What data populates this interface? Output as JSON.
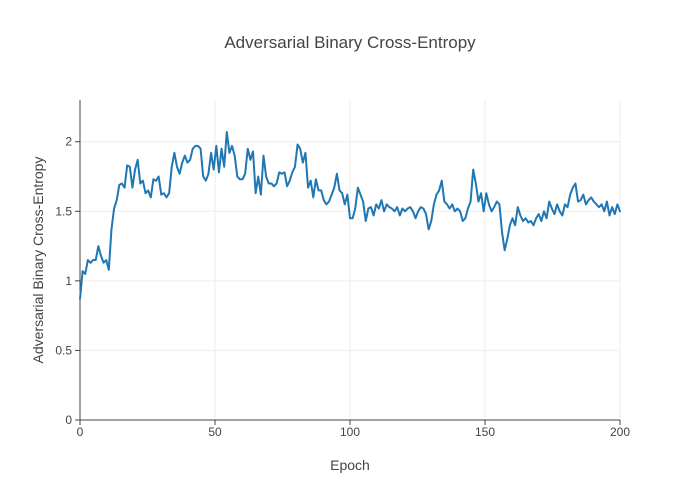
{
  "chart_data": {
    "type": "line",
    "title": "Adversarial Binary Cross-Entropy",
    "xlabel": "Epoch",
    "ylabel": "Adversarial Binary Cross-Entropy",
    "xlim": [
      0,
      200
    ],
    "ylim": [
      0,
      2.3
    ],
    "x_ticks": [
      0,
      50,
      100,
      150,
      200
    ],
    "y_ticks": [
      0,
      0.5,
      1,
      1.5,
      2
    ],
    "x_tick_labels": [
      "0",
      "50",
      "100",
      "150",
      "200"
    ],
    "y_tick_labels": [
      "0",
      "0.5",
      "1",
      "1.5",
      "2"
    ],
    "grid": true,
    "legend": "none",
    "line_color": "#1f77b4",
    "series": [
      {
        "values": [
          0.87,
          1.07,
          1.05,
          1.15,
          1.13,
          1.15,
          1.15,
          1.25,
          1.18,
          1.13,
          1.15,
          1.08,
          1.37,
          1.52,
          1.58,
          1.69,
          1.7,
          1.67,
          1.83,
          1.82,
          1.67,
          1.8,
          1.87,
          1.7,
          1.72,
          1.63,
          1.65,
          1.6,
          1.73,
          1.72,
          1.75,
          1.62,
          1.63,
          1.6,
          1.63,
          1.82,
          1.92,
          1.82,
          1.77,
          1.85,
          1.9,
          1.85,
          1.87,
          1.95,
          1.97,
          1.97,
          1.95,
          1.75,
          1.72,
          1.77,
          1.92,
          1.8,
          1.97,
          1.78,
          1.95,
          1.82,
          2.07,
          1.92,
          1.97,
          1.9,
          1.75,
          1.73,
          1.73,
          1.77,
          1.95,
          1.87,
          1.93,
          1.63,
          1.75,
          1.62,
          1.9,
          1.75,
          1.7,
          1.7,
          1.68,
          1.7,
          1.78,
          1.77,
          1.78,
          1.68,
          1.72,
          1.78,
          1.82,
          1.98,
          1.95,
          1.85,
          1.92,
          1.67,
          1.72,
          1.6,
          1.73,
          1.65,
          1.65,
          1.58,
          1.55,
          1.57,
          1.62,
          1.67,
          1.77,
          1.65,
          1.63,
          1.55,
          1.62,
          1.45,
          1.45,
          1.52,
          1.67,
          1.62,
          1.57,
          1.43,
          1.52,
          1.53,
          1.47,
          1.55,
          1.52,
          1.58,
          1.5,
          1.55,
          1.53,
          1.52,
          1.5,
          1.53,
          1.47,
          1.52,
          1.5,
          1.52,
          1.53,
          1.5,
          1.45,
          1.5,
          1.53,
          1.52,
          1.48,
          1.37,
          1.43,
          1.55,
          1.62,
          1.65,
          1.72,
          1.57,
          1.55,
          1.52,
          1.55,
          1.5,
          1.52,
          1.5,
          1.43,
          1.45,
          1.52,
          1.57,
          1.8,
          1.7,
          1.57,
          1.63,
          1.5,
          1.63,
          1.55,
          1.5,
          1.53,
          1.57,
          1.55,
          1.35,
          1.22,
          1.3,
          1.4,
          1.45,
          1.4,
          1.53,
          1.47,
          1.43,
          1.45,
          1.42,
          1.43,
          1.4,
          1.45,
          1.48,
          1.43,
          1.5,
          1.45,
          1.57,
          1.52,
          1.48,
          1.55,
          1.5,
          1.47,
          1.55,
          1.53,
          1.62,
          1.67,
          1.7,
          1.57,
          1.58,
          1.62,
          1.55,
          1.58,
          1.6,
          1.57,
          1.55,
          1.53,
          1.55,
          1.5,
          1.57,
          1.47,
          1.53,
          1.48,
          1.55,
          1.5
        ]
      }
    ]
  }
}
